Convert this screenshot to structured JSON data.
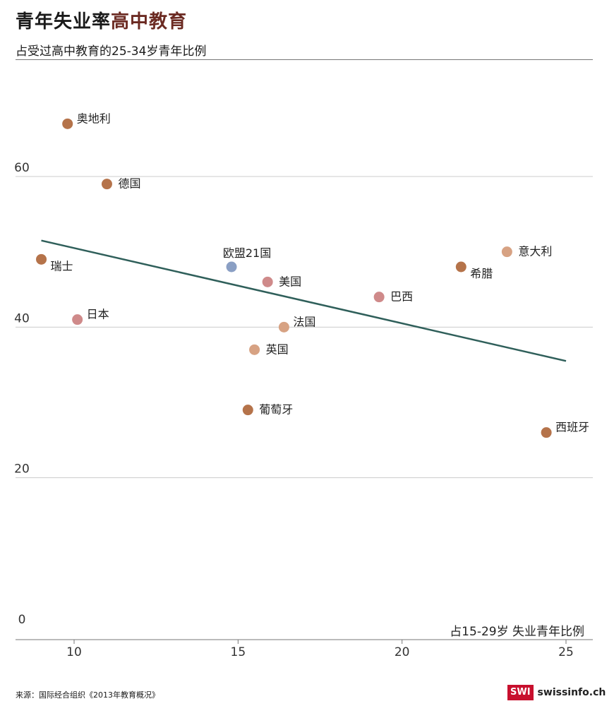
{
  "title_main": "青年失业率",
  "title_highlight": "高中教育",
  "subtitle": "占受过高中教育的25-34岁青年比例",
  "source": "来源：国际经合组织《2013年教育概况》",
  "logo": {
    "mark": "SWI",
    "text": "swissinfo.ch"
  },
  "colors": {
    "highlight": "#6b2a22",
    "trendline": "#2f5f5a",
    "grid": "#cccccc",
    "axis": "#777777"
  },
  "chart_data": {
    "type": "scatter",
    "title": "青年失业率高中教育",
    "xlabel": "占15-29岁 失业青年比例",
    "ylabel": "占受过高中教育的25-34岁青年比例",
    "xlim": [
      8.2,
      25.8
    ],
    "ylim": [
      -1.5,
      75
    ],
    "xticks": [
      10,
      15,
      20,
      25
    ],
    "yticks": [
      0,
      20,
      40,
      60
    ],
    "grid": "horizontal",
    "points": [
      {
        "label": "奥地利",
        "x": 9.8,
        "y": 67.0,
        "color": "#b5734a",
        "label_pos": "upper-right"
      },
      {
        "label": "德国",
        "x": 11.0,
        "y": 59.0,
        "color": "#b5734a",
        "label_pos": "right"
      },
      {
        "label": "瑞士",
        "x": 9.0,
        "y": 49.0,
        "color": "#b5734a",
        "label_pos": "lower-right"
      },
      {
        "label": "日本",
        "x": 10.1,
        "y": 41.0,
        "color": "#cf8a8a",
        "label_pos": "upper-right"
      },
      {
        "label": "欧盟21国",
        "x": 14.8,
        "y": 48.0,
        "color": "#8a9fc4",
        "label_pos": "above"
      },
      {
        "label": "美国",
        "x": 15.9,
        "y": 46.0,
        "color": "#cf8a8a",
        "label_pos": "right"
      },
      {
        "label": "法国",
        "x": 16.4,
        "y": 40.0,
        "color": "#d7a283",
        "label_pos": "upper-right"
      },
      {
        "label": "英国",
        "x": 15.5,
        "y": 37.0,
        "color": "#d7a283",
        "label_pos": "right"
      },
      {
        "label": "葡萄牙",
        "x": 15.3,
        "y": 29.0,
        "color": "#b5734a",
        "label_pos": "right"
      },
      {
        "label": "巴西",
        "x": 19.3,
        "y": 44.0,
        "color": "#cf8a8a",
        "label_pos": "right"
      },
      {
        "label": "希腊",
        "x": 21.8,
        "y": 48.0,
        "color": "#b5734a",
        "label_pos": "lower-right"
      },
      {
        "label": "意大利",
        "x": 23.2,
        "y": 50.0,
        "color": "#d7a283",
        "label_pos": "right"
      },
      {
        "label": "西班牙",
        "x": 24.4,
        "y": 26.0,
        "color": "#b5734a",
        "label_pos": "upper-right"
      }
    ],
    "trendline": {
      "x": [
        9.0,
        25.0
      ],
      "y": [
        51.5,
        35.5
      ]
    }
  }
}
